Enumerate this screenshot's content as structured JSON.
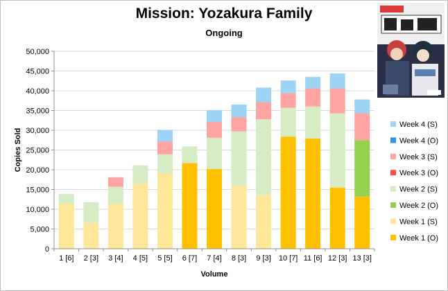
{
  "chart_data": {
    "type": "bar",
    "stacked": true,
    "title": "Mission: Yozakura Family",
    "subtitle": "Ongoing",
    "xlabel": "Volume",
    "ylabel": "Copies Sold",
    "ylim": [
      0,
      50000
    ],
    "yticks": [
      "0",
      "5,000",
      "10,000",
      "15,000",
      "20,000",
      "25,000",
      "30,000",
      "35,000",
      "40,000",
      "45,000",
      "50,000"
    ],
    "grid": true,
    "legend_position": "right",
    "categories": [
      "1 [6]",
      "2 [3]",
      "3 [4]",
      "4 [5]",
      "5 [5]",
      "6 [7]",
      "7 [4]",
      "8 [3]",
      "9 [3]",
      "10 [7]",
      "11 [6]",
      "12 [3]",
      "13 [3]"
    ],
    "series": [
      {
        "name": "Week 1 (O)",
        "color": "#ffc000",
        "values": [
          0,
          0,
          0,
          0,
          0,
          21700,
          20200,
          0,
          0,
          28400,
          27900,
          15500,
          13200
        ]
      },
      {
        "name": "Week 1 (S)",
        "color": "#ffe699",
        "values": [
          11300,
          6600,
          11300,
          16500,
          19200,
          0,
          0,
          16000,
          13700,
          0,
          0,
          0,
          0
        ]
      },
      {
        "name": "Week 2 (O)",
        "color": "#92d050",
        "values": [
          0,
          0,
          0,
          0,
          0,
          0,
          0,
          0,
          0,
          0,
          0,
          0,
          14300
        ]
      },
      {
        "name": "Week 2 (S)",
        "color": "#d6ecc4",
        "values": [
          2600,
          5200,
          4400,
          4600,
          4700,
          4200,
          7900,
          13700,
          19100,
          7300,
          8100,
          18800,
          0
        ]
      },
      {
        "name": "Week 3 (O)",
        "color": "#ff5050",
        "values": [
          0,
          0,
          0,
          0,
          0,
          0,
          0,
          0,
          0,
          0,
          0,
          0,
          0
        ]
      },
      {
        "name": "Week 3 (S)",
        "color": "#ffa3a3",
        "values": [
          0,
          0,
          2400,
          0,
          3200,
          0,
          4000,
          3600,
          4300,
          3700,
          4600,
          6300,
          6800
        ]
      },
      {
        "name": "Week 4 (O)",
        "color": "#2e96e8",
        "values": [
          0,
          0,
          0,
          0,
          0,
          0,
          0,
          0,
          0,
          0,
          0,
          0,
          0
        ]
      },
      {
        "name": "Week 4 (S)",
        "color": "#9dd3f5",
        "values": [
          0,
          0,
          0,
          0,
          3000,
          0,
          3000,
          3200,
          3700,
          3200,
          2900,
          3800,
          3500
        ]
      }
    ]
  }
}
